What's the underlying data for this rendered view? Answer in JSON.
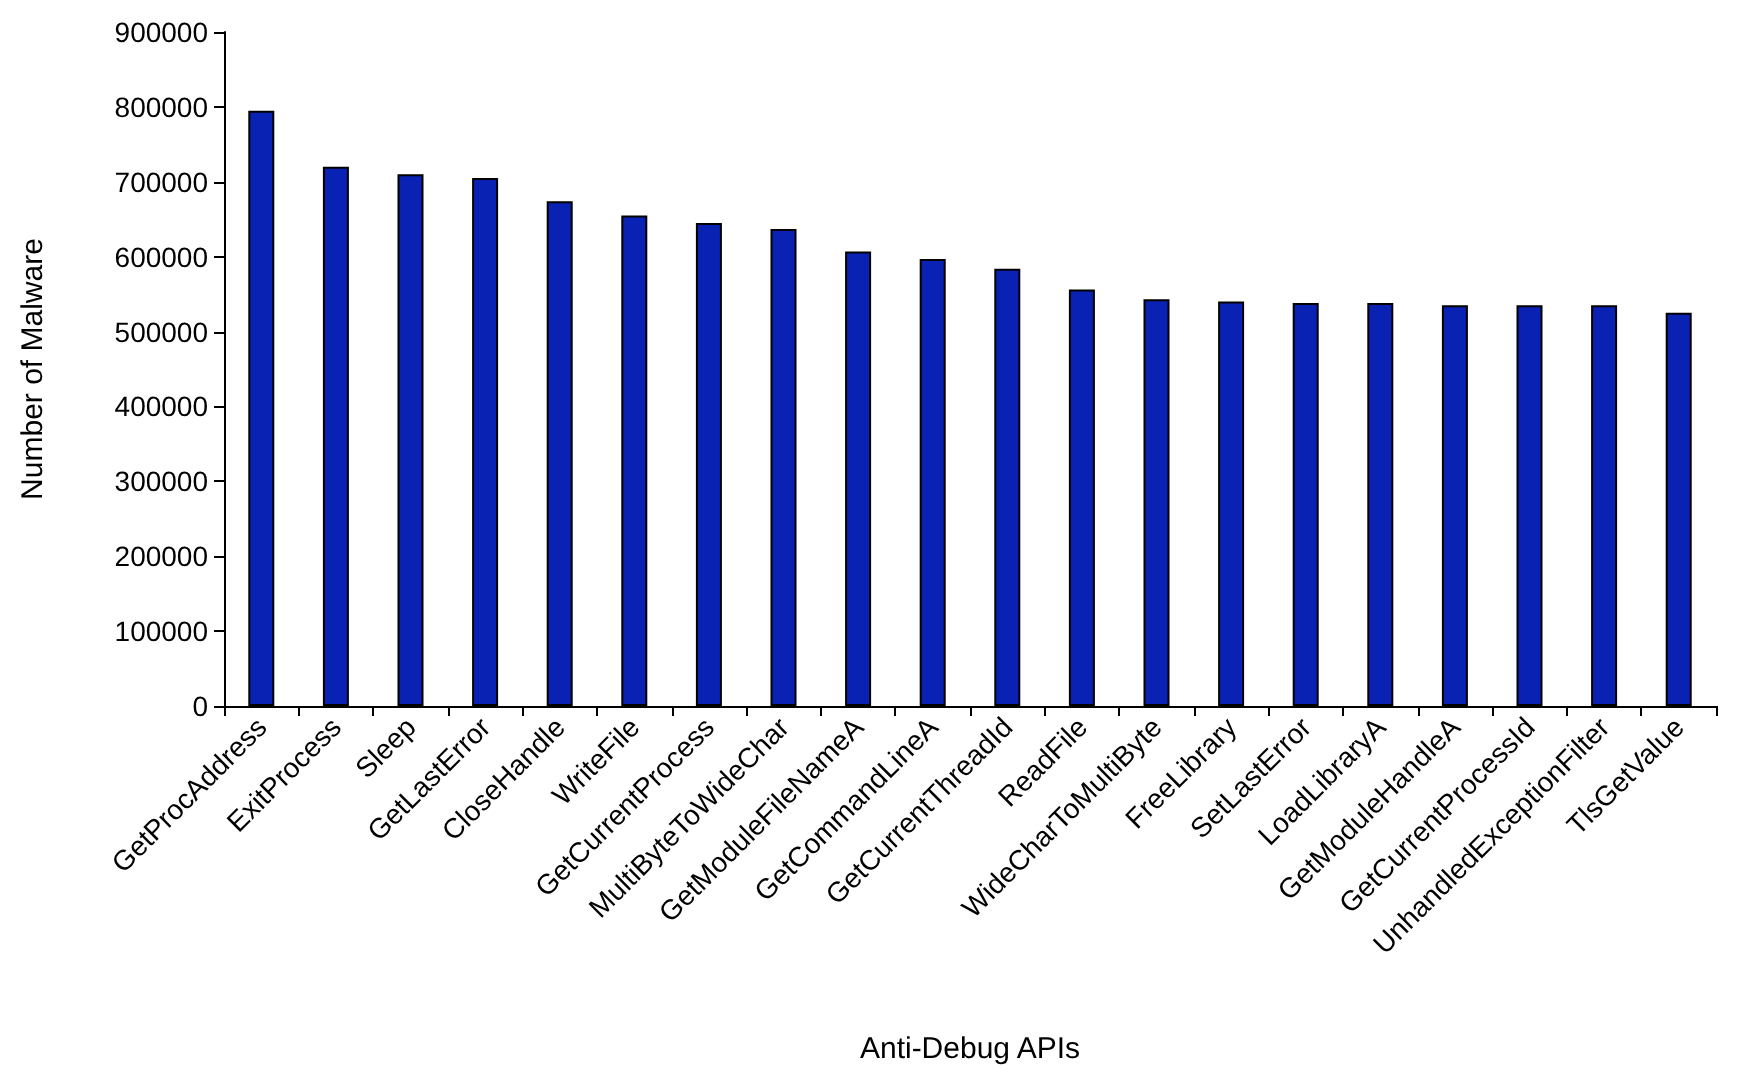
{
  "chart_data": {
    "type": "bar",
    "xlabel": "Anti-Debug APIs",
    "ylabel": "Number of Malware",
    "categories": [
      "GetProcAddress",
      "ExitProcess",
      "Sleep",
      "GetLastError",
      "CloseHandle",
      "WriteFile",
      "GetCurrentProcess",
      "MultiByteToWideChar",
      "GetModuleFileNameA",
      "GetCommandLineA",
      "GetCurrentThreadId",
      "ReadFile",
      "WideCharToMultiByte",
      "FreeLibrary",
      "SetLastError",
      "LoadLibraryA",
      "GetModuleHandleA",
      "GetCurrentProcessId",
      "UnhandledExceptionFilter",
      "TlsGetValue"
    ],
    "values": [
      795000,
      720000,
      710000,
      705000,
      674000,
      655000,
      645000,
      637000,
      607000,
      597000,
      584000,
      556000,
      543000,
      540000,
      538000,
      538000,
      535000,
      535000,
      535000,
      525000
    ],
    "color": "#0a22b4",
    "ylim": [
      0,
      900000
    ],
    "yticks": [
      0,
      100000,
      200000,
      300000,
      400000,
      500000,
      600000,
      700000,
      800000,
      900000
    ],
    "grid": false
  }
}
